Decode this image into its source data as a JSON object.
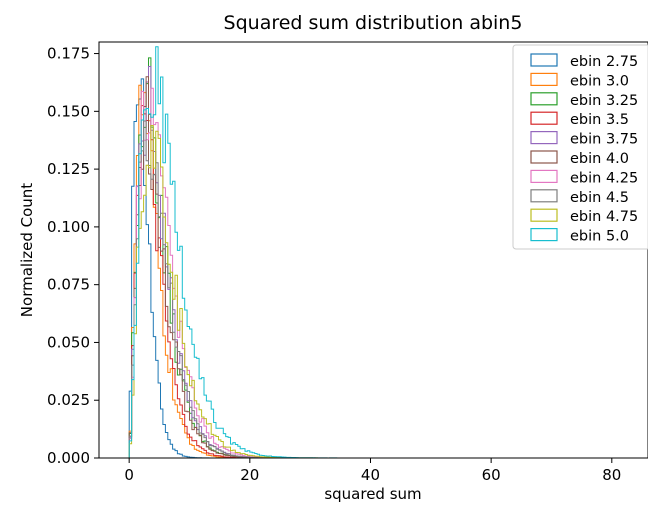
{
  "chart_data": {
    "type": "line",
    "title": "Squared sum distribution abin5",
    "xlabel": "squared sum",
    "ylabel": "Normalized Count",
    "xlim": [
      -5,
      86
    ],
    "ylim": [
      0,
      0.18
    ],
    "xticks": [
      0,
      20,
      40,
      60,
      80
    ],
    "yticks": [
      0.0,
      0.025,
      0.05,
      0.075,
      0.1,
      0.125,
      0.15,
      0.175
    ],
    "xtick_labels": [
      "0",
      "20",
      "40",
      "60",
      "80"
    ],
    "ytick_labels": [
      "0.000",
      "0.025",
      "0.050",
      "0.075",
      "0.100",
      "0.125",
      "0.150",
      "0.175"
    ],
    "legend_position": "top-right",
    "grid": false,
    "histtype": "step",
    "series": [
      {
        "name": "ebin 2.75",
        "color": "#1f77b4",
        "peak_x": 1.5,
        "peak": 0.174
      },
      {
        "name": "ebin 3.0",
        "color": "#ff7f0e",
        "peak_x": 2.3,
        "peak": 0.152
      },
      {
        "name": "ebin 3.25",
        "color": "#2ca02c",
        "peak_x": 2.8,
        "peak": 0.16
      },
      {
        "name": "ebin 3.5",
        "color": "#d62728",
        "peak_x": 2.5,
        "peak": 0.143
      },
      {
        "name": "ebin 3.75",
        "color": "#9467bd",
        "peak_x": 3.0,
        "peak": 0.15
      },
      {
        "name": "ebin 4.0",
        "color": "#8c564b",
        "peak_x": 2.8,
        "peak": 0.148
      },
      {
        "name": "ebin 4.25",
        "color": "#e377c2",
        "peak_x": 3.2,
        "peak": 0.162
      },
      {
        "name": "ebin 4.5",
        "color": "#7f7f7f",
        "peak_x": 3.0,
        "peak": 0.145
      },
      {
        "name": "ebin 4.75",
        "color": "#bcbd22",
        "peak_x": 3.5,
        "peak": 0.14
      },
      {
        "name": "ebin 5.0",
        "color": "#17becf",
        "peak_x": 3.8,
        "peak": 0.165
      }
    ]
  }
}
